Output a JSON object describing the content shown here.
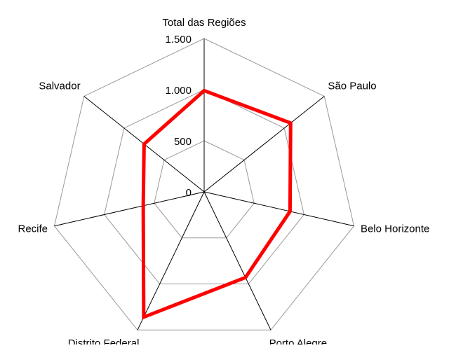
{
  "chart_data": {
    "type": "radar",
    "categories": [
      "Total das Regiões",
      "São Paulo",
      "Belo Horizonte",
      "Porto Alegre",
      "Distrito Federal",
      "Recife",
      "Salvador"
    ],
    "series": [
      {
        "color": "#ff0000",
        "values": [
          990,
          1080,
          860,
          930,
          1360,
          610,
          750
        ]
      }
    ],
    "ylim": [
      0,
      1500
    ],
    "yticks": [
      {
        "value": 0,
        "label": "0"
      },
      {
        "value": 500,
        "label": "500"
      },
      {
        "value": 1000,
        "label": "1.000"
      },
      {
        "value": 1500,
        "label": "1.500"
      }
    ],
    "grid": true
  }
}
